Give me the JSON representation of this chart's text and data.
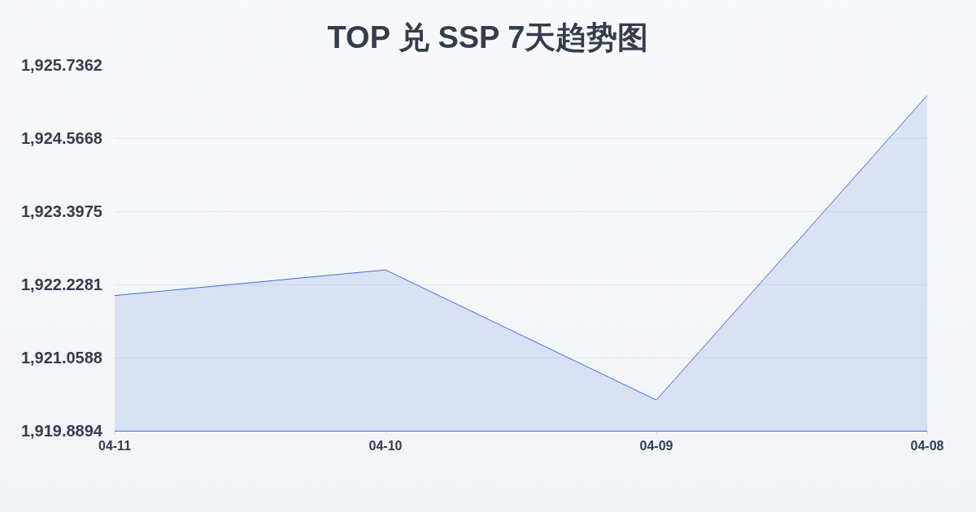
{
  "chart_data": {
    "type": "area",
    "title": "TOP 兑 SSP 7天趋势图",
    "categories": [
      "04-11",
      "04-10",
      "04-09",
      "04-08"
    ],
    "series": [
      {
        "color": "#3b6fd8",
        "values": [
          1922.05,
          1922.46,
          1920.38,
          1925.25
        ]
      }
    ],
    "ylim": [
      1919.8894,
      1925.7362
    ],
    "yticks": [
      {
        "value": 1919.8894,
        "label": "1,919.8894"
      },
      {
        "value": 1921.0588,
        "label": "1,921.0588"
      },
      {
        "value": 1922.2281,
        "label": "1,922.2281"
      },
      {
        "value": 1923.3975,
        "label": "1,923.3975"
      },
      {
        "value": 1924.5668,
        "label": "1,924.5668"
      },
      {
        "value": 1925.7362,
        "label": "1,925.7362"
      }
    ],
    "grid": "y"
  }
}
